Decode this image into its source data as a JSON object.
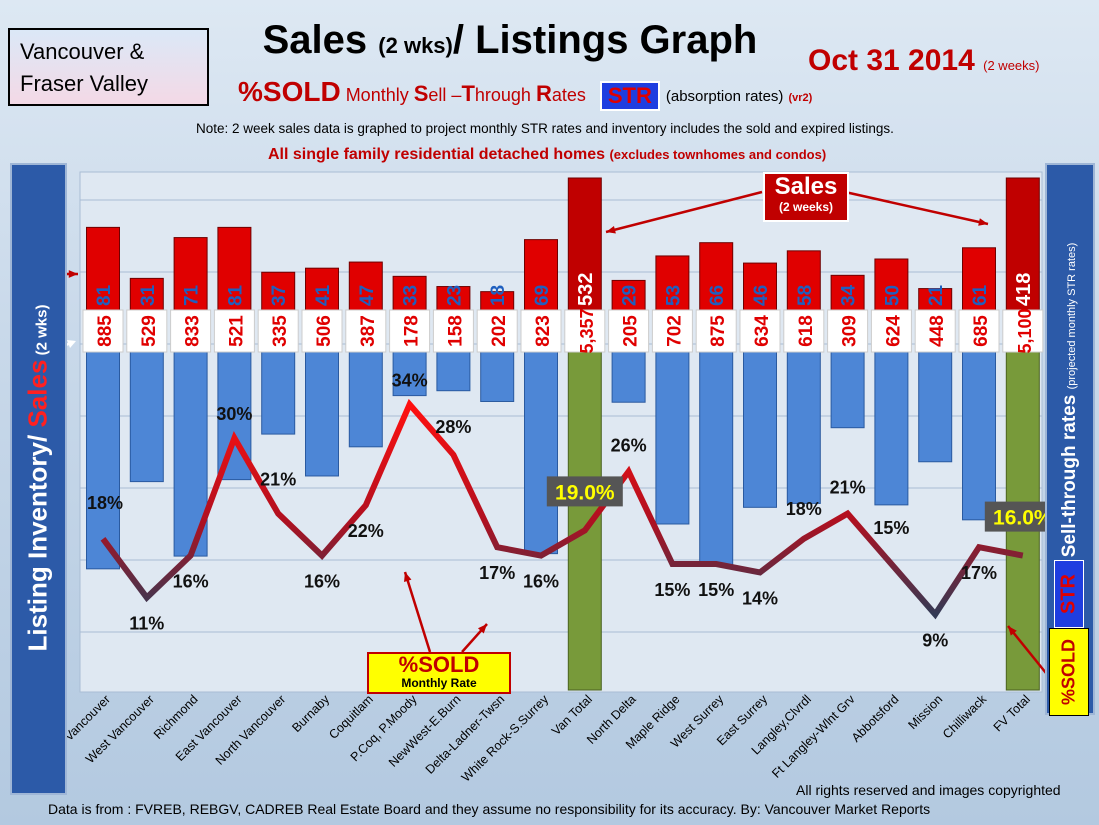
{
  "header": {
    "region": [
      "Vancouver &",
      "Fraser Valley"
    ],
    "title_main": "Sales ",
    "title_small": "(2 wks)",
    "title_rest": "/ Listings Graph",
    "date": "Oct 31 2014",
    "date_note": "(2 weeks)",
    "subtitle_pct": "%SOLD",
    "subtitle_parts": [
      " Monthly ",
      "S",
      "ell –",
      "T",
      "hrough ",
      "R",
      "ates"
    ],
    "str_badge": "STR",
    "subtitle_abs": "(absorption rates)",
    "subtitle_vr": "(vr2)",
    "note": "Note: 2 week sales data is graphed to project monthly STR rates and inventory includes the sold and expired listings.",
    "scope": "All single family residential detached homes",
    "scope_small": "(excludes townhomes and condos)"
  },
  "left_label": {
    "part1": "Listing Inventory/ ",
    "part2": "Sales",
    "part3": " (2 wks)"
  },
  "right_label": {
    "main": "Sell-through rates",
    "small": "(projected monthly STR rates)",
    "str": "STR",
    "sold": "%SOLD"
  },
  "callouts": {
    "sales_t1": "Sales",
    "sales_t2": "(2 weeks)",
    "sold_t1": "%SOLD",
    "sold_t2": "Monthly Rate"
  },
  "footer": {
    "copyright": "All rights reserved and  images copyrighted",
    "source": "Data is from : FVREB, REBGV, CADREB Real Estate Board and they assume no responsibility  for its accuracy. By: Vancouver Market Reports"
  },
  "colors": {
    "sales": "#e00000",
    "inventory": "#4d86d6",
    "total_bar": "#789a3a",
    "line_high": "#ff1010",
    "line_low": "#333a55"
  },
  "chart_data": {
    "type": "bar",
    "categories": [
      "Vancouver",
      "West Vancouver",
      "Richmond",
      "East Vancouver",
      "North Vancouver",
      "Burnaby",
      "Coquitlam",
      "P.Coq, P.Moody",
      "NewWest-E.Burn",
      "Delta-Ladner-Twsn",
      "White Rock-S.Surrey",
      "Van Total",
      "North Delta",
      "Maple Ridge",
      "West Surrey",
      "East Surrey",
      "Langley,Clvrdl",
      "Ft Langley-Wlnt Grv",
      "Abbotsford",
      "Mission",
      "Chilliwack",
      "FV Total"
    ],
    "sales_labels": [
      "81",
      "31",
      "71",
      "81",
      "37",
      "41",
      "47",
      "33",
      "23",
      "18",
      "69",
      "532",
      "29",
      "53",
      "66",
      "46",
      "58",
      "34",
      "50",
      "21",
      "61",
      "418"
    ],
    "inventory_labels": [
      "885",
      "529",
      "833",
      "521",
      "335",
      "506",
      "387",
      "178",
      "158",
      "202",
      "823",
      "5,357",
      "205",
      "702",
      "875",
      "634",
      "618",
      "309",
      "624",
      "448",
      "685",
      "5,100"
    ],
    "sold_pct": [
      18,
      11,
      16,
      30,
      21,
      16,
      22,
      34,
      28,
      17,
      16,
      19.0,
      26,
      15,
      15,
      14,
      18,
      21,
      15,
      9,
      17,
      16.0
    ],
    "sold_labels": [
      "18%",
      "11%",
      "16%",
      "30%",
      "21%",
      "16%",
      "22%",
      "34%",
      "28%",
      "17%",
      "16%",
      "19.0%",
      "26%",
      "15%",
      "15%",
      "14%",
      "18%",
      "21%",
      "15%",
      "9%",
      "17%",
      "16.0%"
    ],
    "total_indices": [
      11,
      21
    ]
  }
}
